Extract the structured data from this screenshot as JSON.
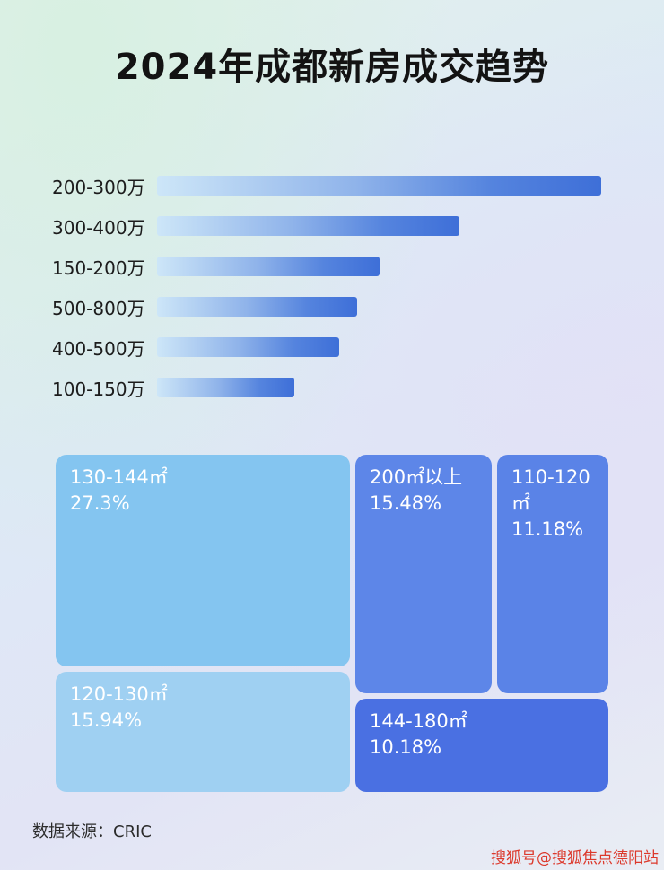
{
  "page": {
    "title": "2024年成都新房成交趋势",
    "source": "数据来源：CRIC",
    "watermark": "搜狐号@搜狐焦点德阳站"
  },
  "colors": {
    "bar_gradient_start": "#cde6f8",
    "bar_gradient_end": "#3e6fd8",
    "watermark_red": "#dc392c"
  },
  "chart_data": [
    {
      "type": "bar",
      "orientation": "horizontal",
      "title": "2024年成都新房成交趋势",
      "categories": [
        "200-300万",
        "300-400万",
        "150-200万",
        "500-800万",
        "400-500万",
        "100-150万"
      ],
      "values": [
        100,
        68,
        50,
        45,
        41,
        31
      ],
      "xlabel": "",
      "ylabel": "",
      "grid": false,
      "legend": false
    },
    {
      "type": "treemap",
      "items": [
        {
          "label": "130-144㎡",
          "percent": "27.3%",
          "value": 27.3,
          "color": "#84c5f0"
        },
        {
          "label": "200㎡以上",
          "percent": "15.48%",
          "value": 15.48,
          "color": "#5d86e8"
        },
        {
          "label": "110-120㎡",
          "percent": "11.18%",
          "value": 11.18,
          "color": "#5a83e7"
        },
        {
          "label": "120-130㎡",
          "percent": "15.94%",
          "value": 15.94,
          "color": "#9fd0f2"
        },
        {
          "label": "144-180㎡",
          "percent": "10.18%",
          "value": 10.18,
          "color": "#4a70e2"
        }
      ]
    }
  ]
}
